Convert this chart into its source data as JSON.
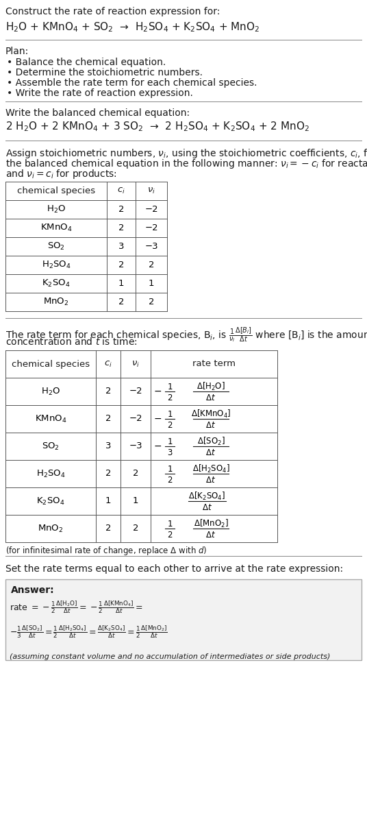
{
  "bg_color": "#ffffff",
  "text_color": "#1a1a1a",
  "title_line1": "Construct the rate of reaction expression for:",
  "reaction_unbalanced": "H$_2$O + KMnO$_4$ + SO$_2$  →  H$_2$SO$_4$ + K$_2$SO$_4$ + MnO$_2$",
  "plan_header": "Plan:",
  "plan_items": [
    "• Balance the chemical equation.",
    "• Determine the stoichiometric numbers.",
    "• Assemble the rate term for each chemical species.",
    "• Write the rate of reaction expression."
  ],
  "balanced_header": "Write the balanced chemical equation:",
  "reaction_balanced": "2 H$_2$O + 2 KMnO$_4$ + 3 SO$_2$  →  2 H$_2$SO$_4$ + K$_2$SO$_4$ + 2 MnO$_2$",
  "stoich_intro_parts": [
    "Assign stoichiometric numbers, $\\nu_i$, using the stoichiometric coefficients, $c_i$, from",
    "the balanced chemical equation in the following manner: $\\nu_i = -c_i$ for reactants",
    "and $\\nu_i = c_i$ for products:"
  ],
  "table1_headers": [
    "chemical species",
    "$c_i$",
    "$\\nu_i$"
  ],
  "table1_species": [
    "H$_2$O",
    "KMnO$_4$",
    "SO$_2$",
    "H$_2$SO$_4$",
    "K$_2$SO$_4$",
    "MnO$_2$"
  ],
  "table1_ci": [
    "2",
    "2",
    "3",
    "2",
    "1",
    "2"
  ],
  "table1_ni": [
    "−2",
    "−2",
    "−3",
    "2",
    "1",
    "2"
  ],
  "rate_intro_parts": [
    "The rate term for each chemical species, B$_i$, is $\\frac{1}{\\nu_i}\\frac{\\Delta[B_i]}{\\Delta t}$ where [B$_i$] is the amount",
    "concentration and $t$ is time:"
  ],
  "table2_headers": [
    "chemical species",
    "$c_i$",
    "$\\nu_i$",
    "rate term"
  ],
  "table2_species": [
    "H$_2$O",
    "KMnO$_4$",
    "SO$_2$",
    "H$_2$SO$_4$",
    "K$_2$SO$_4$",
    "MnO$_2$"
  ],
  "table2_ci": [
    "2",
    "2",
    "3",
    "2",
    "1",
    "2"
  ],
  "table2_ni": [
    "−2",
    "−2",
    "−3",
    "2",
    "1",
    "2"
  ],
  "table2_rate_num": [
    "−1",
    "−1",
    "−1",
    "1",
    "",
    "1"
  ],
  "table2_rate_den": [
    "2",
    "2",
    "3",
    "2",
    "",
    "2"
  ],
  "table2_rate_conc": [
    "$\\Delta$[H$_2$O]",
    "$\\Delta$[KMnO$_4$]",
    "$\\Delta$[SO$_2$]",
    "$\\Delta$[H$_2$SO$_4$]",
    "$\\Delta$[K$_2$SO$_4$]",
    "$\\Delta$[MnO$_2$]"
  ],
  "table2_rate_sign": [
    true,
    true,
    true,
    false,
    false,
    false
  ],
  "infinitesimal_note": "(for infinitesimal rate of change, replace Δ with $d$)",
  "set_equal_text": "Set the rate terms equal to each other to arrive at the rate expression:",
  "answer_label": "Answer:",
  "answer_footnote": "(assuming constant volume and no accumulation of intermediates or side products)"
}
